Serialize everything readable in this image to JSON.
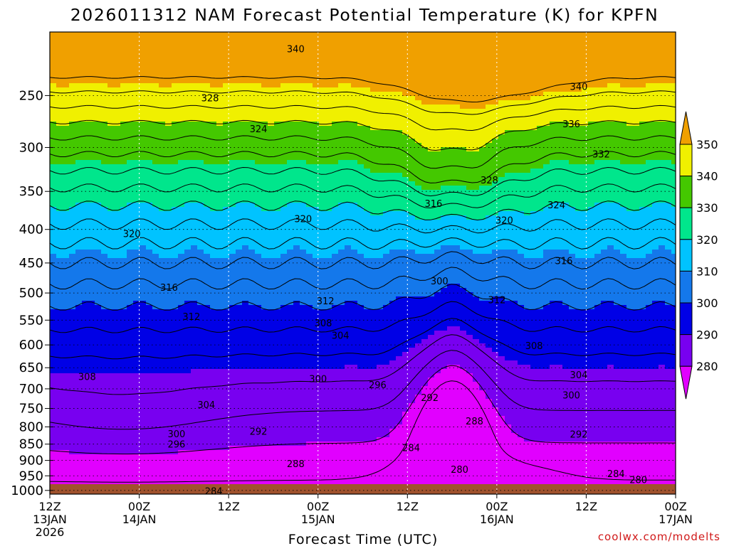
{
  "chart_data": {
    "type": "heatmap",
    "title": "2026011312 NAM Forecast Potential Temperature (K) for KPFN",
    "xlabel": "Forecast Time (UTC)",
    "ylabel": "",
    "credit": "coolwx.com/modelts",
    "x_ticks": [
      {
        "hours": 0,
        "lines": [
          "12Z",
          "13JAN",
          "2026"
        ]
      },
      {
        "hours": 12,
        "lines": [
          "00Z",
          "14JAN"
        ]
      },
      {
        "hours": 24,
        "lines": [
          "12Z"
        ]
      },
      {
        "hours": 36,
        "lines": [
          "00Z",
          "15JAN"
        ]
      },
      {
        "hours": 48,
        "lines": [
          "12Z"
        ]
      },
      {
        "hours": 60,
        "lines": [
          "00Z",
          "16JAN"
        ]
      },
      {
        "hours": 72,
        "lines": [
          "12Z"
        ]
      },
      {
        "hours": 84,
        "lines": [
          "00Z",
          "17JAN"
        ]
      }
    ],
    "xlim": [
      0,
      84
    ],
    "y_ticks": [
      "250",
      "300",
      "350",
      "400",
      "450",
      "500",
      "550",
      "600",
      "650",
      "700",
      "750",
      "800",
      "850",
      "900",
      "950",
      "1000"
    ],
    "y_scale": "log",
    "ylim": [
      1013,
      200
    ],
    "colorbar": {
      "labels": [
        "350",
        "340",
        "330",
        "320",
        "310",
        "300",
        "290",
        "280"
      ],
      "colors": [
        "#f0a000",
        "#f0f000",
        "#44c800",
        "#00e68c",
        "#00c3ff",
        "#1478eb",
        "#0000e6",
        "#7800f0",
        "#e100ff"
      ],
      "extend": "both"
    },
    "contour_interval": 4,
    "contour_labels": [
      {
        "text": "340",
        "hours": 33.0,
        "p": 212
      },
      {
        "text": "328",
        "hours": 21.5,
        "p": 252
      },
      {
        "text": "324",
        "hours": 28.0,
        "p": 281
      },
      {
        "text": "320",
        "hours": 11.0,
        "p": 406
      },
      {
        "text": "320",
        "hours": 34.0,
        "p": 385
      },
      {
        "text": "316",
        "hours": 16.0,
        "p": 490
      },
      {
        "text": "312",
        "hours": 19.0,
        "p": 543
      },
      {
        "text": "312",
        "hours": 37.0,
        "p": 514
      },
      {
        "text": "308",
        "hours": 36.7,
        "p": 555
      },
      {
        "text": "304",
        "hours": 39.0,
        "p": 580
      },
      {
        "text": "308",
        "hours": 5.0,
        "p": 670
      },
      {
        "text": "304",
        "hours": 21.0,
        "p": 740
      },
      {
        "text": "300",
        "hours": 36.0,
        "p": 675
      },
      {
        "text": "296",
        "hours": 44.0,
        "p": 690
      },
      {
        "text": "292",
        "hours": 51.0,
        "p": 721
      },
      {
        "text": "300",
        "hours": 52.3,
        "p": 479
      },
      {
        "text": "316",
        "hours": 51.5,
        "p": 365
      },
      {
        "text": "320",
        "hours": 61.0,
        "p": 387
      },
      {
        "text": "312",
        "hours": 60.0,
        "p": 512
      },
      {
        "text": "328",
        "hours": 59.0,
        "p": 336
      },
      {
        "text": "308",
        "hours": 65.0,
        "p": 601
      },
      {
        "text": "304",
        "hours": 71.0,
        "p": 666
      },
      {
        "text": "300",
        "hours": 70.0,
        "p": 715
      },
      {
        "text": "292",
        "hours": 71.0,
        "p": 820
      },
      {
        "text": "288",
        "hours": 57.0,
        "p": 783
      },
      {
        "text": "284",
        "hours": 48.5,
        "p": 860
      },
      {
        "text": "280",
        "hours": 55.0,
        "p": 928
      },
      {
        "text": "284",
        "hours": 76.0,
        "p": 942
      },
      {
        "text": "280",
        "hours": 79.0,
        "p": 962
      },
      {
        "text": "288",
        "hours": 33.0,
        "p": 910
      },
      {
        "text": "292",
        "hours": 28.0,
        "p": 812
      },
      {
        "text": "300",
        "hours": 17.0,
        "p": 819
      },
      {
        "text": "296",
        "hours": 17.0,
        "p": 850
      },
      {
        "text": "284",
        "hours": 22.0,
        "p": 1002
      },
      {
        "text": "340",
        "hours": 71.0,
        "p": 242
      },
      {
        "text": "336",
        "hours": 70.0,
        "p": 276
      },
      {
        "text": "332",
        "hours": 74.0,
        "p": 307
      },
      {
        "text": "324",
        "hours": 68.0,
        "p": 367
      },
      {
        "text": "316",
        "hours": 69.0,
        "p": 446
      }
    ]
  }
}
